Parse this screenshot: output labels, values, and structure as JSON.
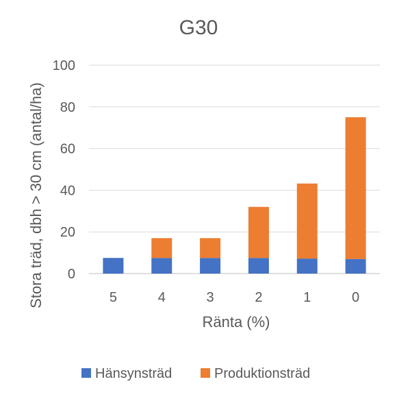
{
  "chart_data": {
    "type": "bar",
    "stacked": true,
    "title": "G30",
    "xlabel": "Ränta (%)",
    "ylabel": "Stora träd, dbh > 30 cm (antal/ha)",
    "categories": [
      "5",
      "4",
      "3",
      "2",
      "1",
      "0"
    ],
    "series": [
      {
        "name": "Hänsynsträd",
        "color": "#4472C4",
        "values": [
          7.5,
          7.5,
          7.5,
          7.5,
          7.2,
          7
        ]
      },
      {
        "name": "Produktionsträd",
        "color": "#ED7D31",
        "values": [
          0,
          9.5,
          9.5,
          24.5,
          36,
          68
        ]
      }
    ],
    "ylim": [
      0,
      100
    ],
    "yticks": [
      "0",
      "20",
      "40",
      "60",
      "80",
      "100"
    ],
    "grid": true,
    "legend": "bottom"
  }
}
